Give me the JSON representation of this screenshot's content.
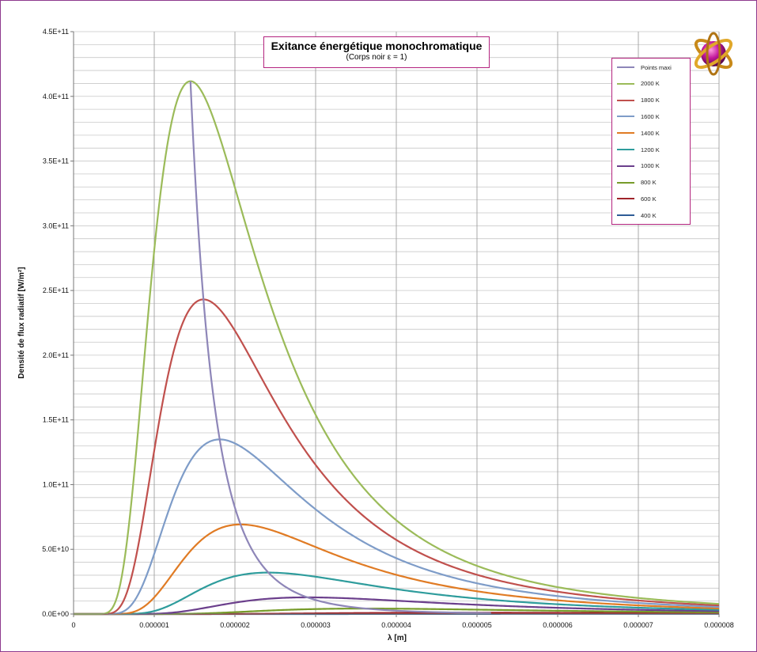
{
  "chart_data": {
    "type": "line",
    "title": "Exitance énergétique monochromatique",
    "subtitle": "(Corps noir ε = 1)",
    "xlabel": "λ [m]",
    "ylabel": "Densité de flux radiatif  [W/m²]",
    "xlim": [
      0,
      8e-06
    ],
    "ylim": [
      0,
      450000000000
    ],
    "x_tick_labels": [
      "0",
      "0.000001",
      "0.000002",
      "0.000003",
      "0.000004",
      "0.000005",
      "0.000006",
      "0.000007",
      "0.000008"
    ],
    "y_tick_labels": [
      "0.0E+00",
      "5.0E+10",
      "1.0E+11",
      "1.5E+11",
      "2.0E+11",
      "2.5E+11",
      "3.0E+11",
      "3.5E+11",
      "4.0E+11",
      "4.5E+11"
    ],
    "grid": true,
    "legend_position": "top-right",
    "series": [
      {
        "name": "Points maxi",
        "color": "#8e86b8",
        "kind": "wien-locus"
      },
      {
        "name": "2000 K",
        "color": "#9bbb59",
        "temperature": 2000
      },
      {
        "name": "1800 K",
        "color": "#c0504d",
        "temperature": 1800
      },
      {
        "name": "1600 K",
        "color": "#7e9cc8",
        "temperature": 1600
      },
      {
        "name": "1400 K",
        "color": "#e07b24",
        "temperature": 1400
      },
      {
        "name": "1200 K",
        "color": "#2e9c9c",
        "temperature": 1200
      },
      {
        "name": "1000 K",
        "color": "#6b3f8c",
        "temperature": 1000
      },
      {
        "name": "800 K",
        "color": "#779c2a",
        "temperature": 800
      },
      {
        "name": "600 K",
        "color": "#a0242a",
        "temperature": 600
      },
      {
        "name": "400 K",
        "color": "#2e5c96",
        "temperature": 400
      }
    ]
  }
}
